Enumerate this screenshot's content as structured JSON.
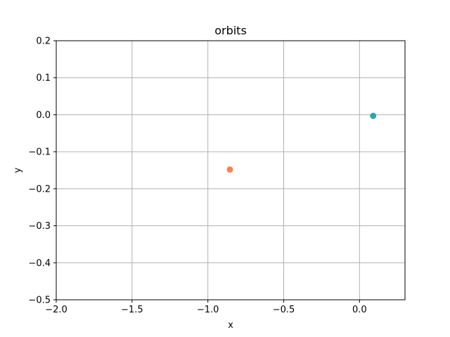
{
  "chart_data": {
    "type": "scatter",
    "title": "orbits",
    "xlabel": "x",
    "ylabel": "y",
    "xlim": [
      -2.0,
      0.3
    ],
    "ylim": [
      -0.5,
      0.2
    ],
    "xticks": [
      -2.0,
      -1.5,
      -1.0,
      -0.5,
      0.0
    ],
    "xtick_labels": [
      "−2.0",
      "−1.5",
      "−1.0",
      "−0.5",
      "0.0"
    ],
    "yticks": [
      -0.5,
      -0.4,
      -0.3,
      -0.2,
      -0.1,
      0.0,
      0.1,
      0.2
    ],
    "ytick_labels": [
      "−0.5",
      "−0.4",
      "−0.3",
      "−0.2",
      "−0.1",
      "0.0",
      "0.1",
      "0.2"
    ],
    "grid": true,
    "points": [
      {
        "x": 0.09,
        "y": -0.003,
        "color": "#2ca9a9"
      },
      {
        "x": -0.855,
        "y": -0.148,
        "color": "#ff7f50"
      }
    ]
  }
}
